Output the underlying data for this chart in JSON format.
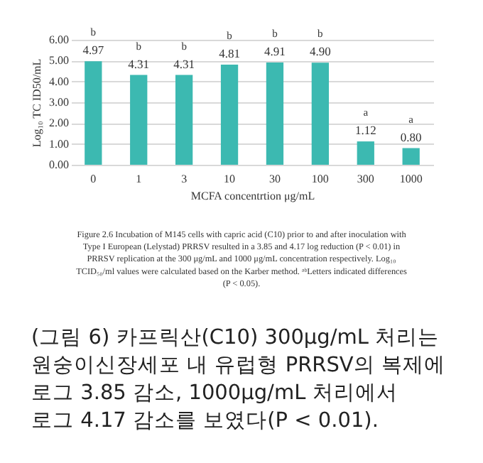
{
  "chart_data": {
    "type": "bar",
    "categories": [
      "0",
      "1",
      "3",
      "10",
      "30",
      "100",
      "300",
      "1000"
    ],
    "values": [
      4.97,
      4.31,
      4.31,
      4.81,
      4.91,
      4.9,
      1.12,
      0.8
    ],
    "color": "#3cb9b1",
    "value_labels": [
      "4.97",
      "4.31",
      "4.31",
      "4.81",
      "4.91",
      "4.90",
      "1.12",
      "0.80"
    ],
    "ylim": [
      0,
      6
    ],
    "yticks": [
      {
        "value": 0,
        "label": "0.00"
      },
      {
        "value": 1,
        "label": "1.00"
      },
      {
        "value": 2,
        "label": "2.00"
      },
      {
        "value": 3,
        "label": "3.00"
      },
      {
        "value": 4,
        "label": "4.00"
      },
      {
        "value": 5,
        "label": "5.00"
      },
      {
        "value": 6,
        "label": "6.00"
      }
    ],
    "grid": "y",
    "ylabel": "Log₁₀ TC ID50/mL",
    "xlabel": "MCFA concentrtion μg/mL",
    "annotations": [
      {
        "text": "b",
        "x": "0",
        "y": 4.97
      },
      {
        "text": "b",
        "x": "1",
        "y": 4.31
      },
      {
        "text": "b",
        "x": "3",
        "y": 4.31
      },
      {
        "text": "b",
        "x": "10",
        "y": 4.81
      },
      {
        "text": "b",
        "x": "30",
        "y": 4.91
      },
      {
        "text": "b",
        "x": "100",
        "y": 4.9
      },
      {
        "text": "a",
        "x": "300",
        "y": 1.12
      },
      {
        "text": "a",
        "x": "1000",
        "y": 0.8
      },
      "Figure 2.6 Incubation of M145 cells with capric acid (C10) prior to and after inoculation with",
      "Type I European (Lelystad) PRRSV resulted in a 3.85 and 4.17 log reduction (P < 0.01) in",
      "PRRSV replication at the 300 μg/mL and 1000 μg/mL concentration respectively. Log₁₀",
      "TCID₅₀/ml values were calculated based on the Karber method.  ᵃᵇLetters indicated differences",
      "(P < 0.05).",
      "(그림 6) 카프릭산(C10) 300μg/mL 처리는",
      "원숭이신장세포 내 유럽형 PRRSV의 복제에",
      "로그 3.85 감소, 1000μg/mL 처리에서",
      "로그 4.17 감소를 보였다(P < 0.01)."
    ]
  }
}
